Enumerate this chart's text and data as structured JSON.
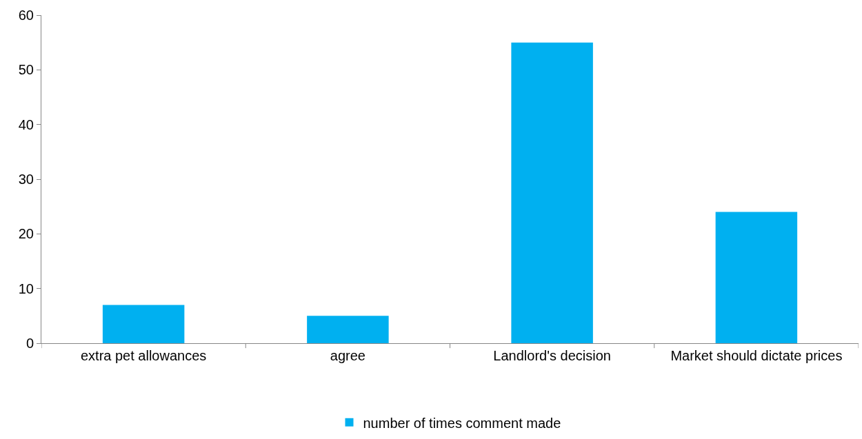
{
  "chart_data": {
    "type": "bar",
    "categories": [
      "extra pet allowances",
      "agree",
      "Landlord's decision",
      "Market should dictate prices"
    ],
    "series": [
      {
        "name": "number of times comment made",
        "color": "#00b0f0",
        "values": [
          7,
          5,
          55,
          24
        ]
      }
    ],
    "ylim": [
      0,
      60
    ],
    "yticks": [
      0,
      10,
      20,
      30,
      40,
      50,
      60
    ],
    "grid": false,
    "legend": "bottom"
  }
}
